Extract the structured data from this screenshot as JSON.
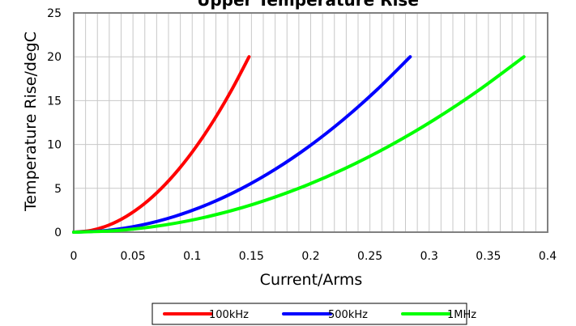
{
  "chart_data": {
    "type": "line",
    "title": "Upper Temperature Rise",
    "xlabel": "Current/Arms",
    "ylabel": "Temperature Rise/degC",
    "xlim": [
      0,
      0.4
    ],
    "ylim": [
      0,
      25
    ],
    "xticks": [
      "0",
      "0.05",
      "0.1",
      "0.15",
      "0.2",
      "0.25",
      "0.3",
      "0.35",
      "0.4"
    ],
    "yticks": [
      "0",
      "5",
      "10",
      "15",
      "20",
      "25"
    ],
    "grid": true,
    "legend_position": "bottom",
    "series": [
      {
        "name": "100kHz",
        "color": "#ff0000",
        "x": [
          0,
          0.0148,
          0.0296,
          0.0444,
          0.0592,
          0.074,
          0.0888,
          0.1036,
          0.1184,
          0.1332,
          0.148
        ],
        "y": [
          0,
          0.2,
          0.8,
          1.8,
          3.2,
          5.0,
          7.2,
          9.8,
          12.8,
          16.2,
          20.0
        ]
      },
      {
        "name": "500kHz",
        "color": "#0000ff",
        "x": [
          0,
          0.0284,
          0.0568,
          0.0852,
          0.1136,
          0.142,
          0.1704,
          0.1988,
          0.2272,
          0.2556,
          0.284
        ],
        "y": [
          0,
          0.2,
          0.8,
          1.8,
          3.2,
          5.0,
          7.2,
          9.8,
          12.8,
          16.2,
          20.0
        ]
      },
      {
        "name": "1MHz",
        "color": "#00ff00",
        "x": [
          0,
          0.038,
          0.076,
          0.114,
          0.152,
          0.19,
          0.228,
          0.266,
          0.304,
          0.342,
          0.38
        ],
        "y": [
          0,
          0.2,
          0.8,
          1.8,
          3.2,
          5.0,
          7.2,
          9.8,
          12.8,
          16.2,
          20.0
        ]
      }
    ]
  }
}
